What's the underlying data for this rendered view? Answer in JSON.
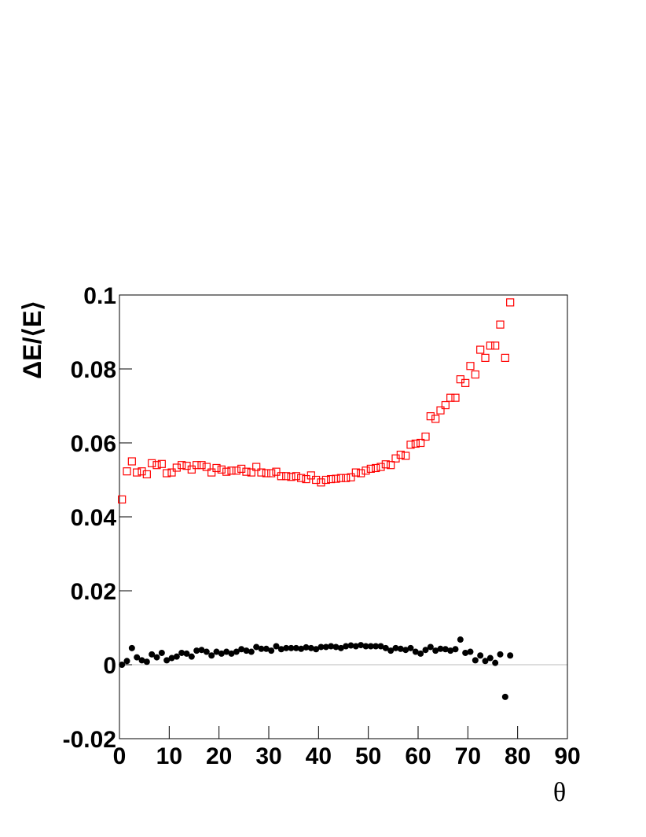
{
  "chart_data": {
    "type": "scatter",
    "x_label": "θ",
    "y_label": "ΔE/⟨E⟩",
    "x": [
      0.5,
      1.5,
      2.5,
      3.5,
      4.5,
      5.5,
      6.5,
      7.5,
      8.5,
      9.5,
      10.5,
      11.5,
      12.5,
      13.5,
      14.5,
      15.5,
      16.5,
      17.5,
      18.5,
      19.5,
      20.5,
      21.5,
      22.5,
      23.5,
      24.5,
      25.5,
      26.5,
      27.5,
      28.5,
      29.5,
      30.5,
      31.5,
      32.5,
      33.5,
      34.5,
      35.5,
      36.5,
      37.5,
      38.5,
      39.5,
      40.5,
      41.5,
      42.5,
      43.5,
      44.5,
      45.5,
      46.5,
      47.5,
      48.5,
      49.5,
      50.5,
      51.5,
      52.5,
      53.5,
      54.5,
      55.5,
      56.5,
      57.5,
      58.5,
      59.5,
      60.5,
      61.5,
      62.5,
      63.5,
      64.5,
      65.5,
      66.5,
      67.5,
      68.5,
      69.5,
      70.5,
      71.5,
      72.5,
      73.5,
      74.5,
      75.5,
      76.5,
      77.5,
      78.5
    ],
    "series": [
      {
        "color": "#ff0000",
        "marker": "open-square",
        "values": [
          0.0447,
          0.0523,
          0.055,
          0.052,
          0.0523,
          0.0515,
          0.0545,
          0.054,
          0.0543,
          0.0518,
          0.052,
          0.0533,
          0.054,
          0.0538,
          0.0528,
          0.054,
          0.054,
          0.0535,
          0.052,
          0.0532,
          0.0528,
          0.0522,
          0.0525,
          0.0525,
          0.053,
          0.0522,
          0.052,
          0.0535,
          0.052,
          0.0518,
          0.0518,
          0.0522,
          0.051,
          0.051,
          0.0508,
          0.051,
          0.0505,
          0.0502,
          0.0512,
          0.05,
          0.0493,
          0.05,
          0.0502,
          0.0503,
          0.0505,
          0.0505,
          0.0507,
          0.052,
          0.0518,
          0.0525,
          0.053,
          0.0532,
          0.0535,
          0.0542,
          0.054,
          0.0558,
          0.0568,
          0.0565,
          0.0595,
          0.0598,
          0.06,
          0.0617,
          0.0672,
          0.0665,
          0.0688,
          0.0702,
          0.0722,
          0.0722,
          0.0772,
          0.0762,
          0.0808,
          0.0785,
          0.0852,
          0.083,
          0.0863,
          0.0863,
          0.092,
          0.083,
          0.098
        ]
      },
      {
        "color": "#000000",
        "marker": "filled-circle",
        "values": [
          0.0,
          0.001,
          0.0045,
          0.002,
          0.0012,
          0.0008,
          0.0028,
          0.002,
          0.0032,
          0.0012,
          0.0018,
          0.0022,
          0.0032,
          0.003,
          0.0022,
          0.0038,
          0.004,
          0.0035,
          0.0025,
          0.0035,
          0.003,
          0.0035,
          0.003,
          0.0035,
          0.0042,
          0.0038,
          0.0035,
          0.0048,
          0.0043,
          0.0043,
          0.0038,
          0.005,
          0.0042,
          0.0045,
          0.0045,
          0.0045,
          0.0043,
          0.0047,
          0.0045,
          0.0042,
          0.0048,
          0.0048,
          0.005,
          0.0048,
          0.0045,
          0.005,
          0.0052,
          0.005,
          0.0053,
          0.005,
          0.005,
          0.005,
          0.005,
          0.0045,
          0.0038,
          0.0045,
          0.0043,
          0.004,
          0.0045,
          0.0035,
          0.003,
          0.004,
          0.0048,
          0.0038,
          0.0043,
          0.0042,
          0.0038,
          0.0042,
          0.0068,
          0.0032,
          0.0035,
          0.0012,
          0.0025,
          0.001,
          0.0018,
          0.0005,
          0.0028,
          -0.0087,
          0.0025
        ]
      }
    ],
    "xlim": [
      0,
      90
    ],
    "xticks": [
      0,
      10,
      20,
      30,
      40,
      50,
      60,
      70,
      80,
      90
    ],
    "ylim": [
      -0.02,
      0.1
    ],
    "yticks": [
      -0.02,
      0,
      0.02,
      0.04,
      0.06,
      0.08,
      0.1
    ],
    "zero_line": true,
    "zero_line_color": "#bbbbbb"
  }
}
